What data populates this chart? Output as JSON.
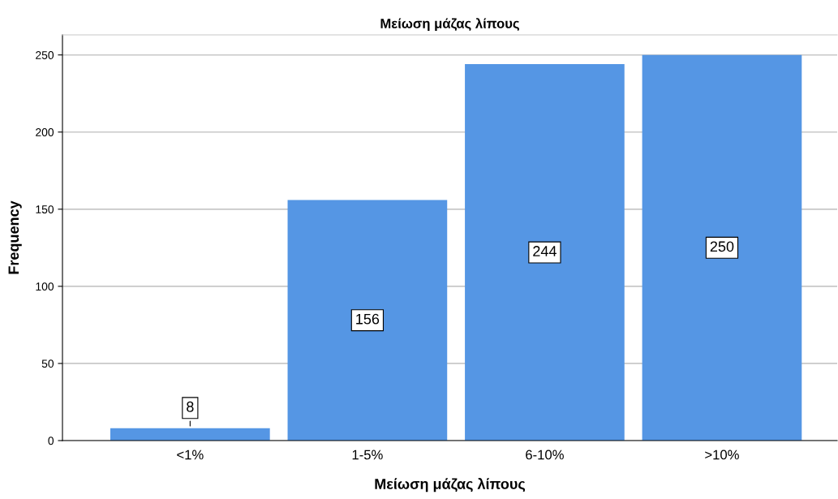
{
  "chart_data": {
    "type": "bar",
    "title": "Μείωση μάζας λίπους",
    "xlabel": "Μείωση μάζας λίπους",
    "ylabel": "Frequency",
    "categories": [
      "<1%",
      "1-5%",
      "6-10%",
      ">10%"
    ],
    "values": [
      8,
      156,
      244,
      250
    ],
    "color": "#5596e4",
    "ylim": [
      0,
      263
    ],
    "yticks": [
      0,
      50,
      100,
      150,
      200,
      250
    ],
    "grid": "y",
    "data_labels": true
  }
}
